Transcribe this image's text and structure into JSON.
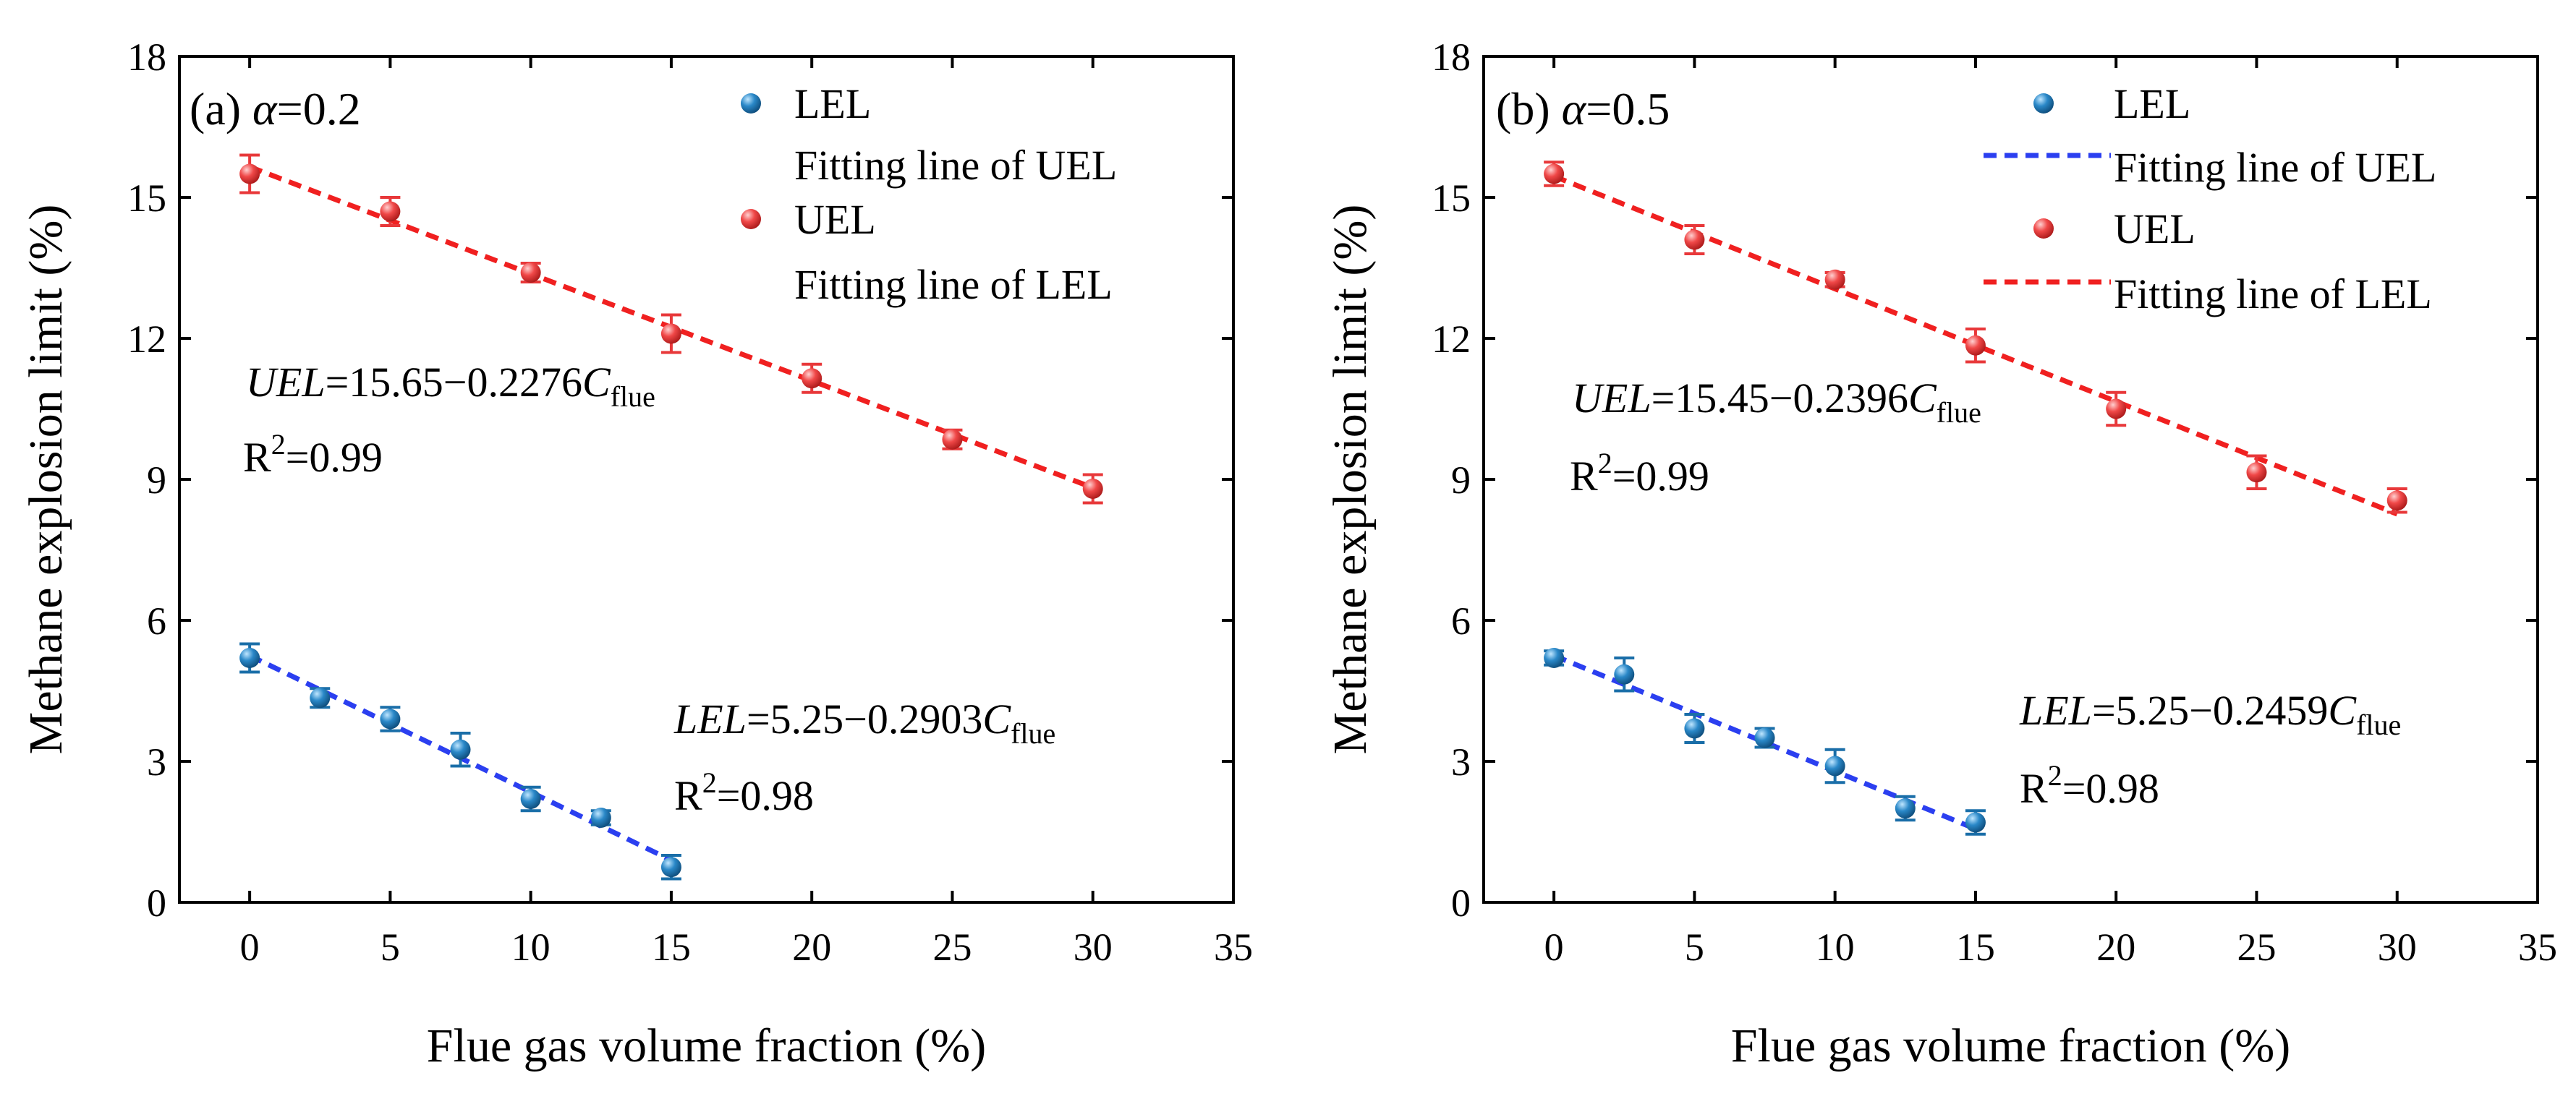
{
  "chart_data": [
    {
      "type": "scatter",
      "panel_label": "(a)",
      "alpha_symbol": "α",
      "alpha_value": "=0.2",
      "xlabel": "Flue gas volume fraction (%)",
      "ylabel": "Methane explosion limit (%)",
      "xlim": [
        -2.5,
        35
      ],
      "ylim": [
        0,
        18
      ],
      "xticks": [
        0,
        5,
        10,
        15,
        20,
        25,
        30,
        35
      ],
      "yticks": [
        0,
        3,
        6,
        9,
        12,
        15,
        18
      ],
      "legend": [
        {
          "kind": "marker",
          "color": "#1a6ea8",
          "label": "LEL"
        },
        {
          "kind": "none",
          "color": "#1a6ea8",
          "label": "Fitting line of UEL"
        },
        {
          "kind": "marker",
          "color": "#e8383a",
          "label": "UEL"
        },
        {
          "kind": "none",
          "color": "#e8383a",
          "label": "Fitting line of LEL"
        }
      ],
      "series": [
        {
          "name": "LEL",
          "color": "#1a6ea8",
          "x": [
            0,
            2.5,
            5,
            7.5,
            10,
            12.5,
            15
          ],
          "y": [
            5.2,
            4.35,
            3.9,
            3.25,
            2.2,
            1.8,
            0.75
          ],
          "err": [
            0.3,
            0.2,
            0.25,
            0.35,
            0.25,
            0.15,
            0.25
          ],
          "fit": {
            "intercept": 5.25,
            "slope": -0.2903,
            "x_range": [
              0,
              15
            ]
          }
        },
        {
          "name": "UEL",
          "color": "#e8383a",
          "x": [
            0,
            5,
            10,
            15,
            20,
            25,
            30
          ],
          "y": [
            15.5,
            14.7,
            13.4,
            12.1,
            11.15,
            9.85,
            8.8
          ],
          "err": [
            0.4,
            0.3,
            0.2,
            0.4,
            0.3,
            0.2,
            0.3
          ],
          "fit": {
            "intercept": 15.65,
            "slope": -0.2276,
            "x_range": [
              0,
              30
            ]
          }
        }
      ],
      "annotations": {
        "uel_var": "UEL",
        "uel_eq": "=15.65−0.2276",
        "uel_r2": "=0.99",
        "lel_var": "LEL",
        "lel_eq": "=5.25−0.2903",
        "lel_r2": "=0.98",
        "c_symbol": "C",
        "c_sub": "flue",
        "r_symbol": "R",
        "r_sup": "2"
      }
    },
    {
      "type": "scatter",
      "panel_label": "(b)",
      "alpha_symbol": "α",
      "alpha_value": "=0.5",
      "xlabel": "Flue gas volume fraction (%)",
      "ylabel": "Methane explosion limit (%)",
      "xlim": [
        -2.5,
        35
      ],
      "ylim": [
        0,
        18
      ],
      "xticks": [
        0,
        5,
        10,
        15,
        20,
        25,
        30,
        35
      ],
      "yticks": [
        0,
        3,
        6,
        9,
        12,
        15,
        18
      ],
      "legend": [
        {
          "kind": "marker",
          "color": "#1a6ea8",
          "label": "LEL"
        },
        {
          "kind": "line",
          "color": "#2b3ff0",
          "label": "Fitting line of UEL"
        },
        {
          "kind": "marker",
          "color": "#e8383a",
          "label": "UEL"
        },
        {
          "kind": "line",
          "color": "#f02020",
          "label": "Fitting line of LEL"
        }
      ],
      "series": [
        {
          "name": "LEL",
          "color": "#1a6ea8",
          "x": [
            0,
            2.5,
            5,
            7.5,
            10,
            12.5,
            15
          ],
          "y": [
            5.2,
            4.85,
            3.7,
            3.5,
            2.9,
            2.0,
            1.7
          ],
          "err": [
            0.15,
            0.35,
            0.3,
            0.2,
            0.35,
            0.25,
            0.25
          ],
          "fit": {
            "intercept": 5.25,
            "slope": -0.2459,
            "x_range": [
              0,
              15
            ]
          }
        },
        {
          "name": "UEL",
          "color": "#e8383a",
          "x": [
            0,
            5,
            10,
            15,
            20,
            25,
            30
          ],
          "y": [
            15.5,
            14.1,
            13.25,
            11.85,
            10.5,
            9.15,
            8.55
          ],
          "err": [
            0.25,
            0.3,
            0.15,
            0.35,
            0.35,
            0.35,
            0.25
          ],
          "fit": {
            "intercept": 15.45,
            "slope": -0.2396,
            "x_range": [
              0,
              30
            ]
          }
        }
      ],
      "annotations": {
        "uel_var": "UEL",
        "uel_eq": "=15.45−0.2396",
        "uel_r2": "=0.99",
        "lel_var": "LEL",
        "lel_eq": "=5.25−0.2459",
        "lel_r2": "=0.98",
        "c_symbol": "C",
        "c_sub": "flue",
        "r_symbol": "R",
        "r_sup": "2"
      }
    }
  ]
}
